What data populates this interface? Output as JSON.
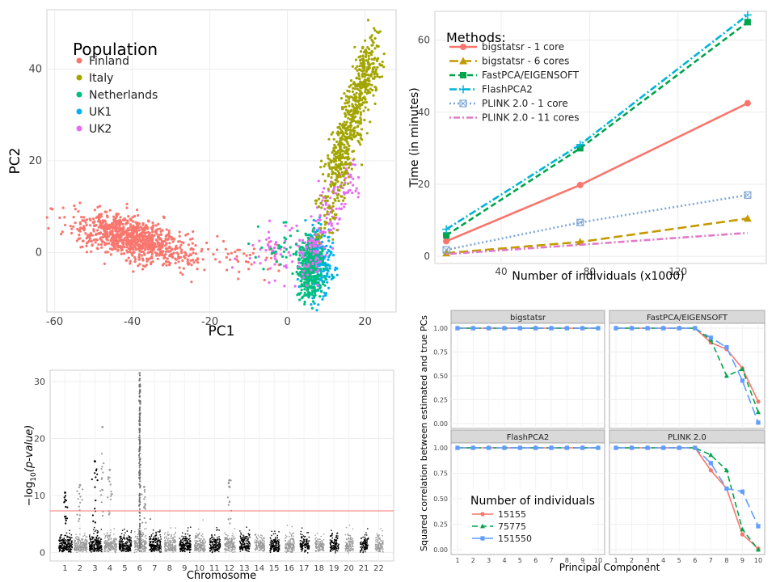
{
  "chart_data": [
    {
      "type": "scatter",
      "xlabel": "PC1",
      "ylabel": "PC2",
      "xlim": [
        -62,
        28
      ],
      "ylim": [
        -13,
        53
      ],
      "xticks": [
        -60,
        -40,
        -20,
        0,
        20
      ],
      "yticks": [
        0,
        20,
        40
      ],
      "grid": true,
      "legend_title": "Population",
      "legend_position": "top-left",
      "series": [
        {
          "name": "Finland",
          "color": "#F8766D",
          "clusters": [
            {
              "x_range": [
                -55,
                -20
              ],
              "y_range": [
                -3,
                10
              ],
              "center": [
                -40,
                3
              ]
            }
          ]
        },
        {
          "name": "Italy",
          "color": "#A3A500",
          "clusters": [
            {
              "x_range": [
                8,
                26
              ],
              "y_range": [
                10,
                48
              ],
              "center": [
                17,
                28
              ]
            }
          ]
        },
        {
          "name": "Netherlands",
          "color": "#00BF7D",
          "clusters": [
            {
              "x_range": [
                2,
                12
              ],
              "y_range": [
                -12,
                8
              ],
              "center": [
                6,
                -3
              ]
            }
          ]
        },
        {
          "name": "UK1",
          "color": "#00B0F6",
          "clusters": [
            {
              "x_range": [
                3,
                12
              ],
              "y_range": [
                -10,
                6
              ],
              "center": [
                7,
                -2
              ]
            }
          ]
        },
        {
          "name": "UK2",
          "color": "#E76BF3",
          "clusters": [
            {
              "x_range": [
                0,
                20
              ],
              "y_range": [
                -10,
                20
              ],
              "center": [
                8,
                2
              ]
            }
          ]
        }
      ]
    },
    {
      "type": "line",
      "xlabel": "Number of individuals (x1000)",
      "ylabel": "Time (in minutes)",
      "xlim": [
        10,
        160
      ],
      "ylim": [
        -2,
        68
      ],
      "xticks": [
        40,
        80,
        120
      ],
      "yticks": [
        0,
        20,
        40,
        60
      ],
      "grid": true,
      "legend_title": "Methods:",
      "legend_position": "top-left",
      "x": [
        15.155,
        75.775,
        151.55
      ],
      "series": [
        {
          "name": "bigstatsr - 1 core",
          "color": "#F8766D",
          "dash": "solid",
          "marker": "circle",
          "values": [
            4.2,
            19.8,
            42.5
          ]
        },
        {
          "name": "bigstatsr - 6 cores",
          "color": "#C49A00",
          "dash": "longdash",
          "marker": "triangle",
          "values": [
            0.9,
            4.0,
            10.5
          ]
        },
        {
          "name": "FastPCA/EIGENSOFT",
          "color": "#00A44A",
          "dash": "dash",
          "marker": "square",
          "values": [
            5.8,
            30.0,
            65.0
          ]
        },
        {
          "name": "FlashPCA2",
          "color": "#00B4D8",
          "dash": "dashdot",
          "marker": "plus",
          "values": [
            7.5,
            31.0,
            67.0
          ]
        },
        {
          "name": "PLINK 2.0 - 1 core",
          "color": "#7FA8D6",
          "dash": "dot",
          "marker": "xsquare",
          "values": [
            1.8,
            9.4,
            17.0
          ]
        },
        {
          "name": "PLINK 2.0 - 11 cores",
          "color": "#E07AC8",
          "dash": "dotdash",
          "marker": "none",
          "values": [
            0.6,
            3.2,
            6.5
          ]
        }
      ]
    },
    {
      "type": "scatter",
      "title": "",
      "xlabel": "Chromosome",
      "ylabel_main": "−log",
      "ylabel_sub": "10",
      "ylabel_paren": "(p-value)",
      "xlim": [
        0,
        23
      ],
      "ylim": [
        -1.5,
        32
      ],
      "yticks": [
        0,
        10,
        20,
        30
      ],
      "categories": [
        "1",
        "2",
        "3",
        "4",
        "5",
        "6",
        "7",
        "8",
        "9",
        "10",
        "11",
        "12",
        "13",
        "14",
        "15",
        "16",
        "17",
        "18",
        "19",
        "20",
        "21",
        "22"
      ],
      "significance_line": 7.3,
      "colors": {
        "odd": "#000000",
        "even": "#9a9a9a",
        "threshold": "#F8766D"
      },
      "peaks": [
        {
          "chr": 1,
          "max": 10.5
        },
        {
          "chr": 2,
          "max": 11.8
        },
        {
          "chr": 3,
          "max": 16.0
        },
        {
          "chr": 3.5,
          "max": 22.0
        },
        {
          "chr": 4,
          "max": 14.5
        },
        {
          "chr": 6,
          "max": 31.5
        },
        {
          "chr": 6.3,
          "max": 11.5
        },
        {
          "chr": 12,
          "max": 12.7
        }
      ]
    },
    {
      "type": "line",
      "ylabel": "Squared correlation between estimated and true PCs",
      "xlabel": "Principal Component",
      "xlim": [
        1,
        10
      ],
      "ylim": [
        0,
        1
      ],
      "xticks": [
        1,
        2,
        3,
        4,
        5,
        6,
        7,
        8,
        9,
        10
      ],
      "yticks": [
        0.0,
        0.25,
        0.5,
        0.75,
        1.0
      ],
      "ytick_labels": [
        "0.00",
        "0.25",
        "0.50",
        "0.75",
        "1.00"
      ],
      "legend_title": "Number of individuals",
      "legend_position": "bottom-left",
      "series_defs": [
        {
          "name": "15155",
          "color": "#F8766D",
          "dash": "solid",
          "marker": "circle"
        },
        {
          "name": "75775",
          "color": "#00A44A",
          "dash": "dash",
          "marker": "triangle"
        },
        {
          "name": "151550",
          "color": "#619CFF",
          "dash": "longdash",
          "marker": "square"
        }
      ],
      "panels": [
        {
          "title": "bigstatsr",
          "series": [
            [
              1,
              1,
              1,
              1,
              1,
              1,
              1,
              1,
              1,
              1
            ],
            [
              1,
              1,
              1,
              1,
              1,
              1,
              1,
              1,
              1,
              1
            ],
            [
              1,
              1,
              1,
              1,
              1,
              1,
              1,
              1,
              1,
              1
            ]
          ]
        },
        {
          "title": "FastPCA/EIGENSOFT",
          "series": [
            [
              1,
              1,
              1,
              1,
              1,
              1,
              0.85,
              0.78,
              0.58,
              0.23
            ],
            [
              1,
              1,
              1,
              1,
              1,
              1,
              0.88,
              0.5,
              0.57,
              0.12
            ],
            [
              1,
              1,
              1,
              1,
              1,
              1,
              0.9,
              0.8,
              0.45,
              0.01
            ]
          ]
        },
        {
          "title": "FlashPCA2",
          "series": [
            [
              1,
              1,
              1,
              1,
              1,
              1,
              1,
              1,
              1,
              1
            ],
            [
              1,
              1,
              1,
              1,
              1,
              1,
              1,
              1,
              1,
              1
            ],
            [
              1,
              1,
              1,
              1,
              1,
              1,
              1,
              1,
              1,
              1
            ]
          ]
        },
        {
          "title": "PLINK 2.0",
          "series": [
            [
              1,
              1,
              1,
              1,
              1,
              1,
              0.78,
              0.6,
              0.15,
              0.01
            ],
            [
              1,
              1,
              1,
              1,
              1,
              1,
              0.93,
              0.78,
              0.2,
              0.0
            ],
            [
              1,
              1,
              1,
              1,
              1,
              1,
              0.85,
              0.6,
              0.57,
              0.23
            ]
          ]
        }
      ]
    }
  ]
}
